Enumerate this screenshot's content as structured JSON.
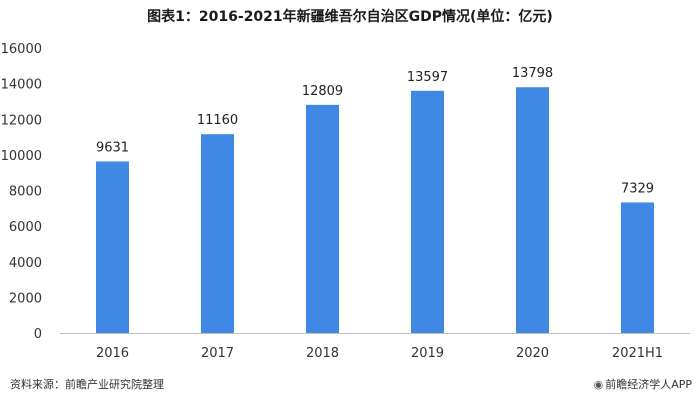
{
  "header": {
    "title": "图表1：2016-2021年新疆维吾尔自治区GDP情况(单位：亿元)"
  },
  "footer": {
    "source": "资料来源：前瞻产业研究院整理",
    "brand": "前瞻经济学人APP",
    "brand_icon": "brand-logo-icon"
  },
  "colors": {
    "bar": "#3f88e4",
    "axis": "#bfbfbf"
  },
  "chart_data": {
    "type": "bar",
    "title": "图表1：2016-2021年新疆维吾尔自治区GDP情况(单位：亿元)",
    "categories": [
      "2016",
      "2017",
      "2018",
      "2019",
      "2020",
      "2021H1"
    ],
    "values": [
      9631,
      11160,
      12809,
      13597,
      13798,
      7329
    ],
    "data_labels": [
      "9631",
      "11160",
      "12809",
      "13597",
      "13798",
      "7329"
    ],
    "xlabel": "",
    "ylabel": "",
    "ylim": [
      0,
      16000
    ],
    "yticks": [
      0,
      2000,
      4000,
      6000,
      8000,
      10000,
      12000,
      14000,
      16000
    ],
    "ytick_labels": [
      "0",
      "2000",
      "4000",
      "6000",
      "8000",
      "10000",
      "12000",
      "14000",
      "16000"
    ],
    "grid": false,
    "legend": "none"
  }
}
